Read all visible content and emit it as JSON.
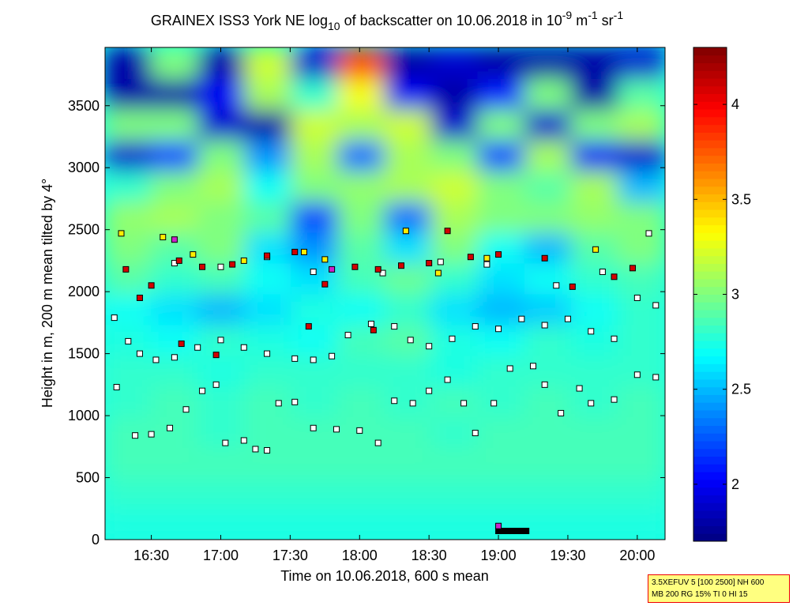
{
  "chart_data": {
    "type": "heatmap",
    "title": [
      "GRAINEX ISS3 York NE log",
      "10",
      " of backscatter on 10.06.2018 in 10",
      "-9",
      " m",
      "-1",
      " sr",
      "-1"
    ],
    "xlabel": "Time on 10.06.2018, 600 s mean",
    "ylabel": "Height in m, 200 m mean tilted by 4°",
    "xlim": [
      970,
      1212
    ],
    "xticks": [
      {
        "value": 990,
        "label": "16:30"
      },
      {
        "value": 1020,
        "label": "17:00"
      },
      {
        "value": 1050,
        "label": "17:30"
      },
      {
        "value": 1080,
        "label": "18:00"
      },
      {
        "value": 1110,
        "label": "18:30"
      },
      {
        "value": 1140,
        "label": "19:00"
      },
      {
        "value": 1170,
        "label": "19:30"
      },
      {
        "value": 1200,
        "label": "20:00"
      }
    ],
    "ylim": [
      0,
      3970
    ],
    "yticks": [
      0,
      500,
      1000,
      1500,
      2000,
      2500,
      3000,
      3500
    ],
    "clim": [
      1.7,
      4.3
    ],
    "cticks": [
      2,
      2.5,
      3,
      3.5,
      4
    ],
    "colormap": "jet",
    "z": [
      [
        2.75,
        2.75,
        2.75,
        2.75,
        2.75,
        2.75,
        2.75,
        2.75,
        2.75,
        2.75,
        2.75,
        2.75
      ],
      [
        2.8,
        2.8,
        2.8,
        2.8,
        2.8,
        2.8,
        2.8,
        2.8,
        2.8,
        2.8,
        2.8,
        2.8
      ],
      [
        2.85,
        2.85,
        2.85,
        2.85,
        2.85,
        2.85,
        2.85,
        2.85,
        2.85,
        2.85,
        2.85,
        2.85
      ],
      [
        2.85,
        2.85,
        2.8,
        2.85,
        2.85,
        2.85,
        2.85,
        2.8,
        2.85,
        2.85,
        2.85,
        2.85
      ],
      [
        2.8,
        2.85,
        2.8,
        2.85,
        2.8,
        2.85,
        2.8,
        2.85,
        2.8,
        2.85,
        2.8,
        2.85
      ],
      [
        2.8,
        2.8,
        2.75,
        2.8,
        2.8,
        2.8,
        2.8,
        2.75,
        2.8,
        2.8,
        2.8,
        2.8
      ],
      [
        2.75,
        2.7,
        2.8,
        2.75,
        2.7,
        2.85,
        2.9,
        2.75,
        2.7,
        2.8,
        2.75,
        2.8
      ],
      [
        2.7,
        2.6,
        2.5,
        2.6,
        2.75,
        2.7,
        2.8,
        2.6,
        2.5,
        2.55,
        2.7,
        2.8
      ],
      [
        2.9,
        2.8,
        2.85,
        2.7,
        2.6,
        2.85,
        2.95,
        2.8,
        2.6,
        2.7,
        2.8,
        2.85
      ],
      [
        3.0,
        2.9,
        3.0,
        2.6,
        2.4,
        2.9,
        2.6,
        3.0,
        2.7,
        2.5,
        2.9,
        3.0
      ],
      [
        3.05,
        3.1,
        3.0,
        2.9,
        2.2,
        3.0,
        2.3,
        3.1,
        3.0,
        3.0,
        3.05,
        3.0
      ],
      [
        2.8,
        3.0,
        3.1,
        2.7,
        3.0,
        3.05,
        3.1,
        3.2,
        3.0,
        2.9,
        3.1,
        2.5
      ],
      [
        1.9,
        2.2,
        3.0,
        2.4,
        3.1,
        2.3,
        3.1,
        3.0,
        2.2,
        3.1,
        2.0,
        1.9
      ],
      [
        3.0,
        3.0,
        1.9,
        1.8,
        3.2,
        3.1,
        3.2,
        1.9,
        3.0,
        1.9,
        3.0,
        3.1
      ],
      [
        1.8,
        1.8,
        2.0,
        3.1,
        2.8,
        3.3,
        2.0,
        1.8,
        2.1,
        3.0,
        1.8,
        2.9
      ],
      [
        1.8,
        3.0,
        1.8,
        3.2,
        1.9,
        3.8,
        1.8,
        1.9,
        1.8,
        1.8,
        1.8,
        1.9
      ]
    ],
    "point_groups": [
      {
        "color": "#ffffff",
        "x": [
          974,
          980,
          985,
          992,
          1000,
          1010,
          1020,
          1030,
          1040,
          1052,
          1060,
          1068,
          1075,
          1085,
          1095,
          1102,
          1110,
          1120,
          1130,
          1140,
          1150,
          1160,
          1170,
          1180,
          1190,
          1200,
          1208,
          975,
          983,
          990,
          998,
          1005,
          1012,
          1018,
          1022,
          1030,
          1035,
          1040,
          1045,
          1052,
          1060,
          1070,
          1080,
          1088,
          1095,
          1103,
          1110,
          1118,
          1125,
          1130,
          1138,
          1145,
          1155,
          1160,
          1167,
          1175,
          1180,
          1190,
          1200,
          1208,
          1000,
          1020,
          1040,
          1060,
          1090,
          1115,
          1135,
          1165,
          1185,
          1205
        ],
        "y": [
          1790,
          1600,
          1500,
          1450,
          1470,
          1550,
          1610,
          1550,
          1500,
          1460,
          1450,
          1480,
          1650,
          1740,
          1720,
          1610,
          1560,
          1620,
          1720,
          1700,
          1780,
          1730,
          1780,
          1680,
          1620,
          1950,
          1890,
          1230,
          840,
          850,
          900,
          1050,
          1200,
          1250,
          780,
          800,
          730,
          720,
          1100,
          1110,
          900,
          890,
          880,
          780,
          1120,
          1100,
          1200,
          1290,
          1100,
          860,
          1100,
          1380,
          1400,
          1250,
          1020,
          1220,
          1100,
          1130,
          1330,
          1310,
          2230,
          2200,
          2280,
          2160,
          2150,
          2240,
          2220,
          2050,
          2160,
          2470
        ]
      },
      {
        "color": "#d40000",
        "x": [
          979,
          985,
          990,
          1002,
          1012,
          1025,
          1040,
          1052,
          1065,
          1078,
          1088,
          1098,
          1110,
          1118,
          1128,
          1140,
          1160,
          1172,
          1190,
          1198,
          1003,
          1018,
          1058,
          1086
        ],
        "y": [
          2180,
          1950,
          2050,
          2250,
          2200,
          2220,
          2290,
          2320,
          2060,
          2200,
          2180,
          2210,
          2230,
          2490,
          2280,
          2300,
          2270,
          2040,
          2120,
          2190,
          1580,
          1490,
          1720,
          1690
        ]
      },
      {
        "color": "#ffee00",
        "x": [
          977,
          995,
          1008,
          1030,
          1056,
          1065,
          1100,
          1114,
          1135,
          1182
        ],
        "y": [
          2470,
          2440,
          2300,
          2250,
          2320,
          2260,
          2490,
          2150,
          2270,
          2340
        ]
      },
      {
        "color": "#000000",
        "x": [
          1140,
          1142,
          1144,
          1146,
          1148,
          1150,
          1152
        ],
        "y": [
          70,
          70,
          70,
          70,
          70,
          70,
          70
        ]
      },
      {
        "color": "#cc22cc",
        "x": [
          1140,
          1068,
          1000
        ],
        "y": [
          110,
          2180,
          2420
        ]
      }
    ],
    "info": [
      "3.5XEFUV 5 [100 2500] NH 600",
      "MB 200 RG 15% TI 0 HI 15"
    ]
  }
}
